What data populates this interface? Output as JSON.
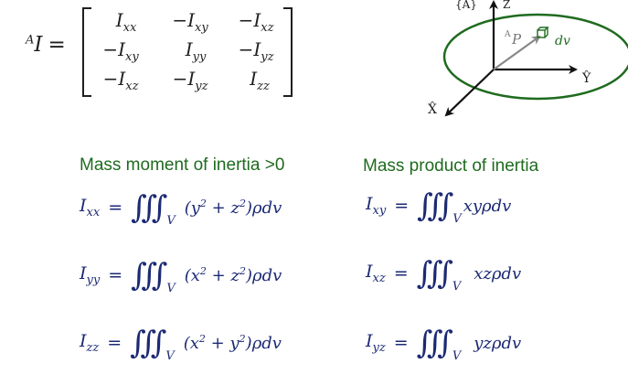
{
  "matrix": {
    "prefix": "A",
    "symbol": "I",
    "equals": "=",
    "cells": [
      [
        "I",
        "xx",
        "−I",
        "xy",
        "−I",
        "xz"
      ],
      [
        "−I",
        "xy",
        "I",
        "yy",
        "−I",
        "yz"
      ],
      [
        "−I",
        "xz",
        "−I",
        "yz",
        "I",
        "zz"
      ]
    ]
  },
  "diagram": {
    "frame_label": "{A}",
    "z_label": "Z",
    "y_label": "Ŷ",
    "x_label": "X̂",
    "p_prefix": "A",
    "p_symbol": "P",
    "dv_label": "dv"
  },
  "headings": {
    "left": "Mass moment of inertia >0",
    "right": "Mass product of inertia"
  },
  "equations_left": [
    {
      "lhs": "I",
      "sub": "xx",
      "b1": "y",
      "b2": "z"
    },
    {
      "lhs": "I",
      "sub": "yy",
      "b1": "x",
      "b2": "z"
    },
    {
      "lhs": "I",
      "sub": "zz",
      "b1": "x",
      "b2": "y"
    }
  ],
  "equations_right": [
    {
      "lhs": "I",
      "sub": "xy",
      "body": "xyρdv"
    },
    {
      "lhs": "I",
      "sub": "xz",
      "body": "xzρdv"
    },
    {
      "lhs": "I",
      "sub": "yz",
      "body": "yzρdv"
    }
  ],
  "common": {
    "equals": "=",
    "integral": "∭",
    "volume": "V",
    "square": "2",
    "plus": "+",
    "open": "(",
    "close": ")",
    "tail": "ρdv"
  },
  "colors": {
    "heading": "#1f6b1f",
    "equation": "#1c2a74",
    "ellipse": "#1f6b1f",
    "vector": "#888888",
    "axis": "#111111"
  }
}
